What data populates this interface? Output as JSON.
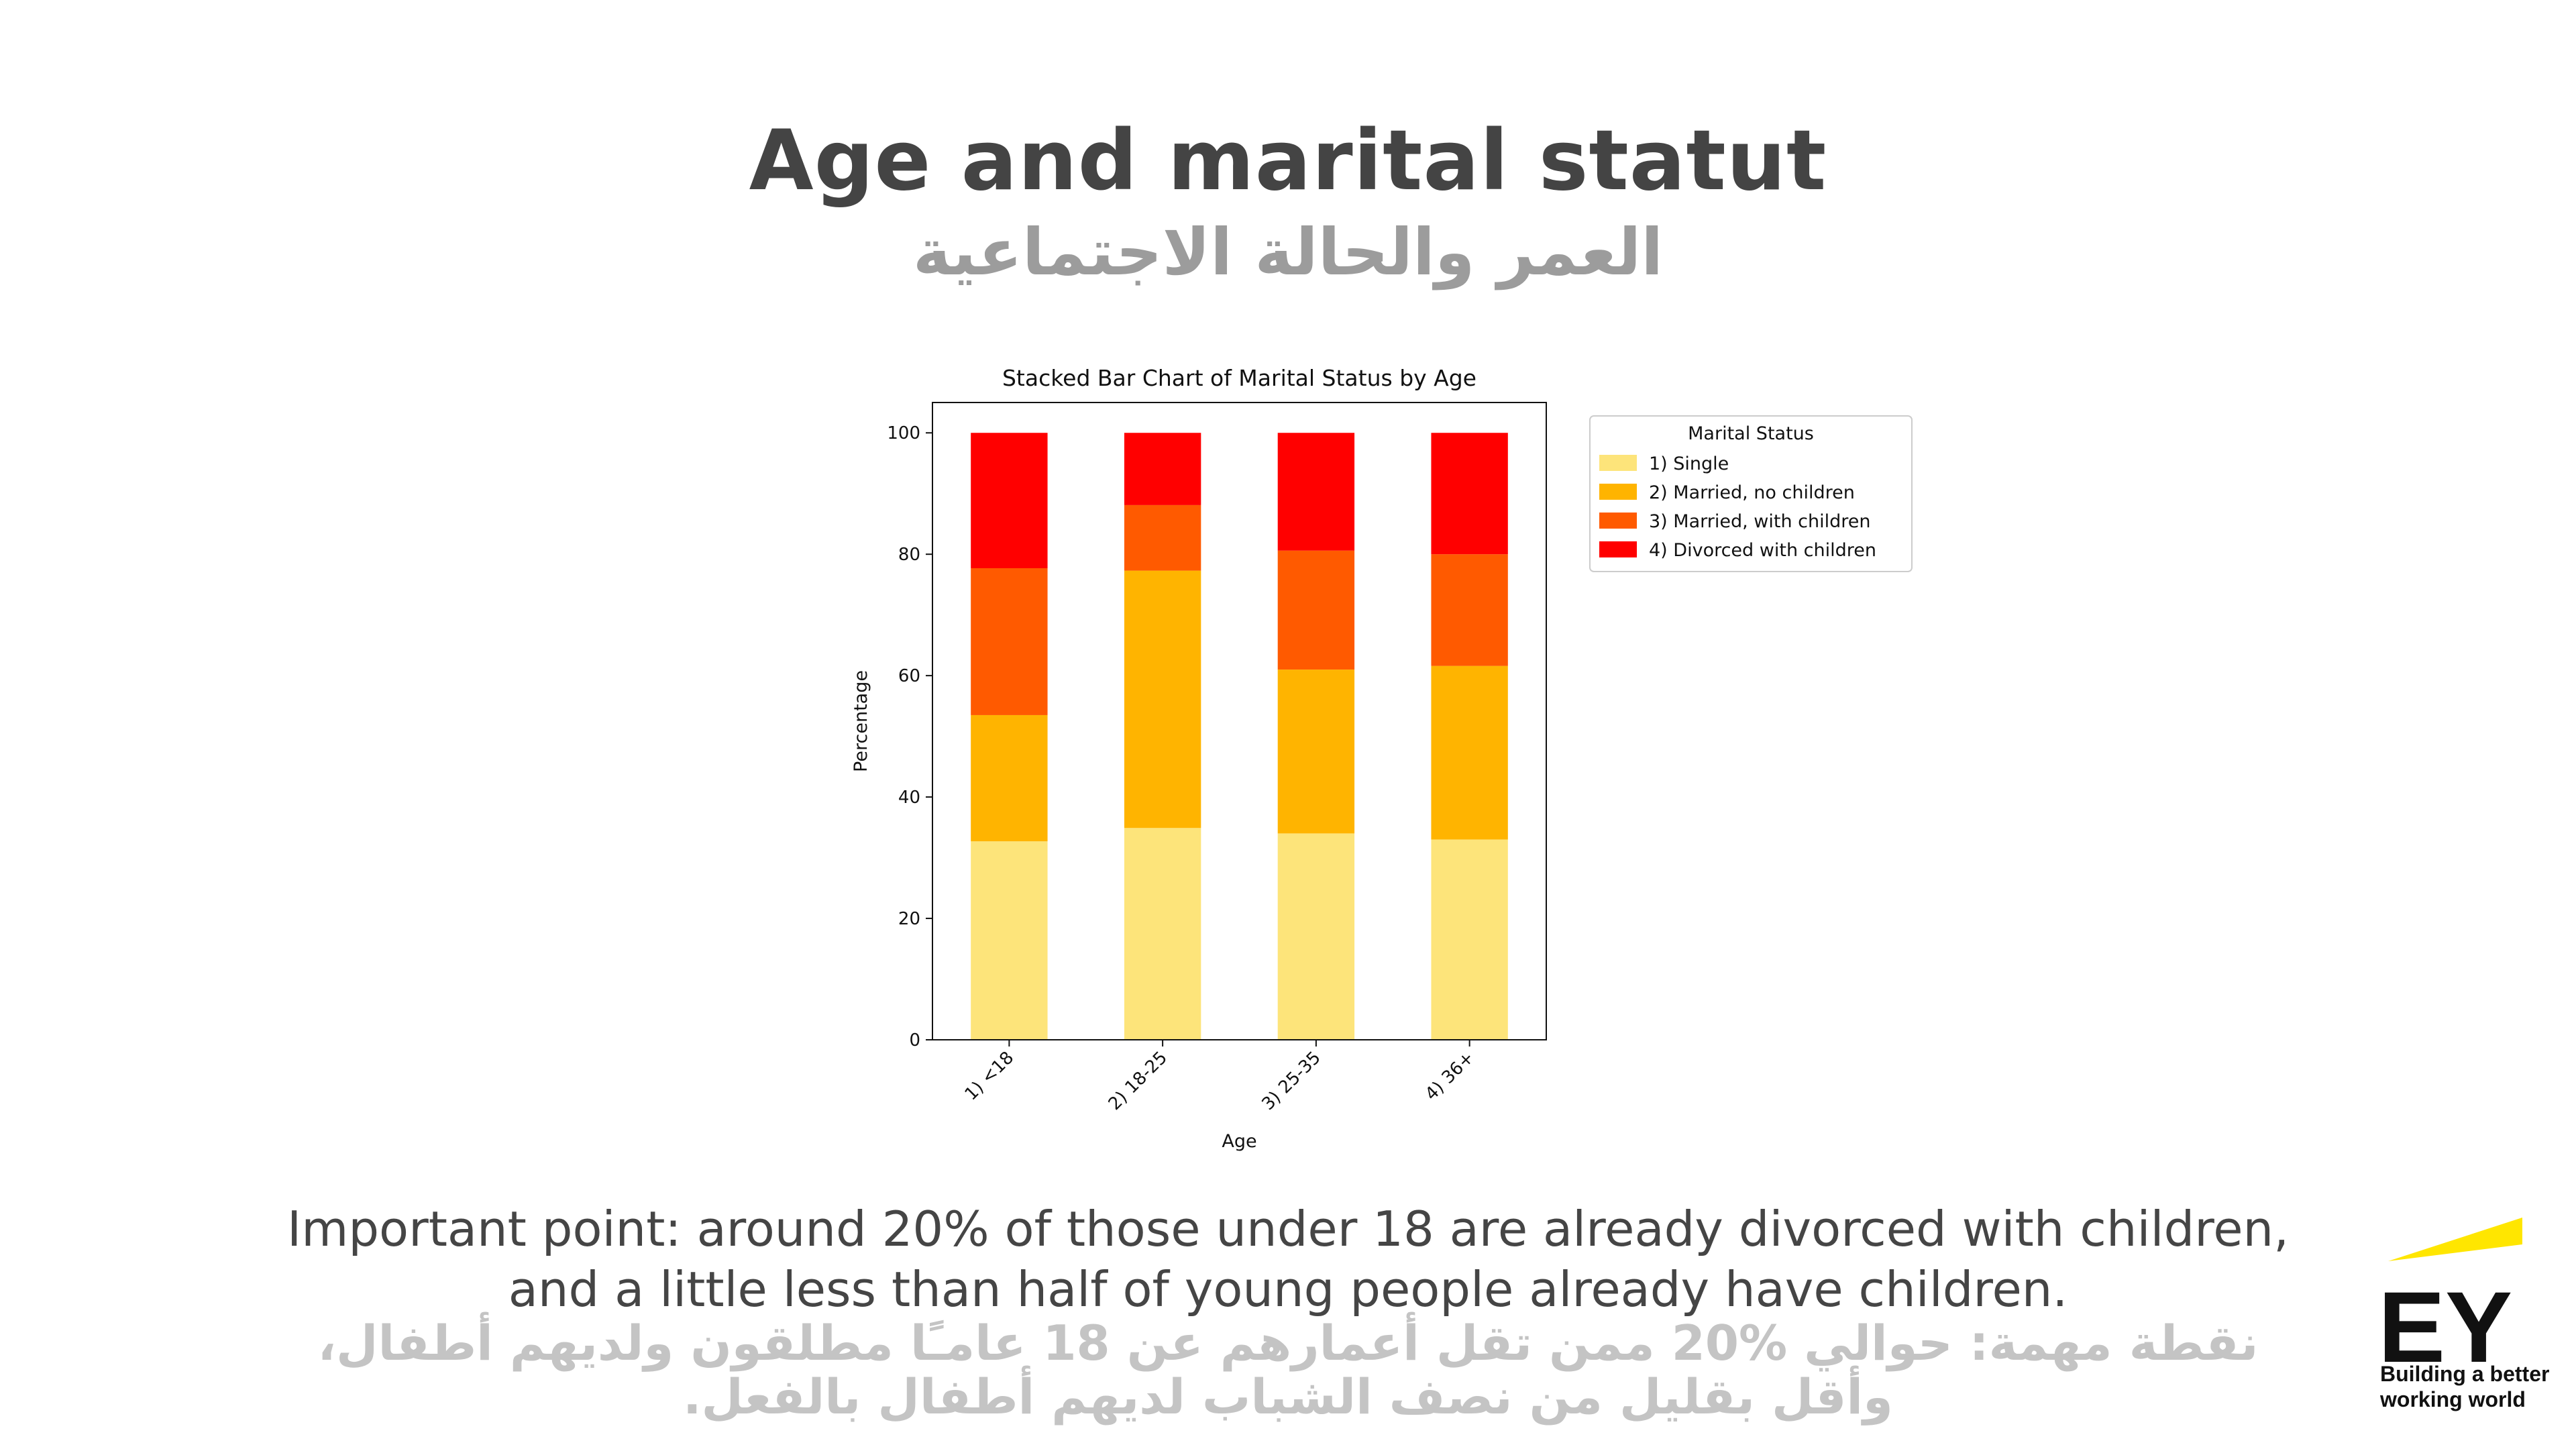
{
  "page": {
    "title": "Age and marital statut",
    "subtitle_ar": "العمر والحالة الاجتماعية",
    "note_line1": "Important point: around 20% of those under 18 are already divorced with children,",
    "note_line2": "and a little less than half of young people already have children.",
    "note_ar_line1": "نقطة مهمة: حوالي %20 ممن تقل أعمارهم عن 18 عامـًا مطلقون ولديهم أطفال،",
    "note_ar_line2": "وأقل بقليل من نصف الشباب لديهم أطفال بالفعل."
  },
  "brand": {
    "logo_text": "EY",
    "tagline_line1": "Building a better",
    "tagline_line2": "working world",
    "accent_color": "#ffe600"
  },
  "chart_data": {
    "type": "bar",
    "stacked": true,
    "title": "Stacked Bar Chart of Marital Status by Age",
    "xlabel": "Age",
    "ylabel": "Percentage",
    "ylim": [
      0,
      105
    ],
    "yticks": [
      0,
      20,
      40,
      60,
      80,
      100
    ],
    "categories": [
      "1) <18",
      "2) 18-25",
      "3) 25-35",
      "4) 36+"
    ],
    "legend_title": "Marital Status",
    "legend_position": "outside-top-right",
    "series": [
      {
        "name": "1) Single",
        "color": "#fde47a",
        "values": [
          32.7,
          34.9,
          34.0,
          33.0
        ]
      },
      {
        "name": "2) Married, no children",
        "color": "#ffb400",
        "values": [
          20.8,
          42.4,
          27.0,
          28.6
        ]
      },
      {
        "name": "3) Married, with children",
        "color": "#ff5a00",
        "values": [
          24.2,
          10.8,
          19.6,
          18.4
        ]
      },
      {
        "name": "4) Divorced with children",
        "color": "#ff0000",
        "values": [
          22.3,
          11.9,
          19.4,
          20.0
        ]
      }
    ]
  }
}
